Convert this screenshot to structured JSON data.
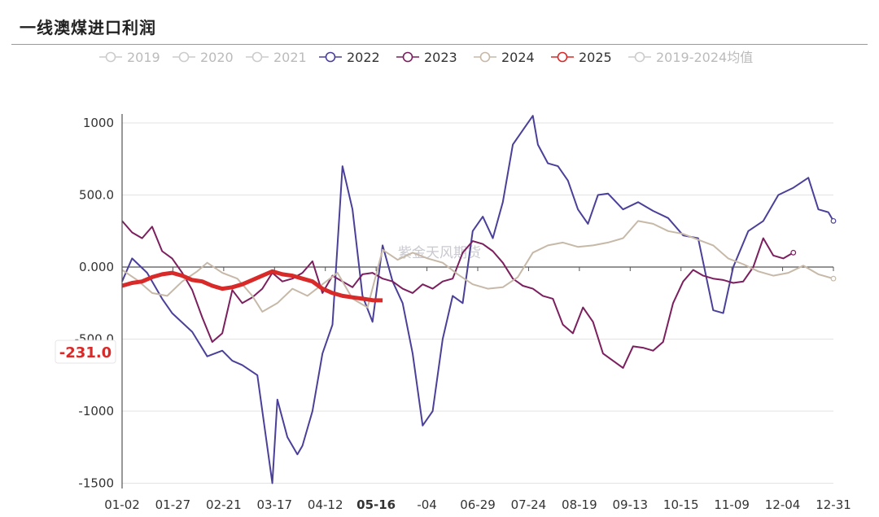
{
  "page": {
    "title": "一线澳煤进口利润"
  },
  "watermark": "紫金天风期货",
  "tooltip": {
    "value": "-231.0",
    "color": "#d92a2a"
  },
  "highlight_x_label": "05-16",
  "chart_data": {
    "type": "line",
    "title": "一线澳煤进口利润",
    "x_ticks": [
      "01-02",
      "01-27",
      "02-21",
      "03-17",
      "04-12",
      "05-16",
      "-04",
      "06-29",
      "07-24",
      "08-19",
      "09-13",
      "10-15",
      "11-09",
      "12-04",
      "12-31"
    ],
    "y_ticks": [
      "1000",
      "500.0",
      "0.000",
      "-500.0",
      "-1000",
      "-1500"
    ],
    "y_tick_values": [
      1000,
      500,
      0,
      -500,
      -1000,
      -1500
    ],
    "ylim": [
      -1500,
      1000
    ],
    "grid": true,
    "legend_position": "top",
    "series": [
      {
        "name": "2019",
        "color": "#cccccc",
        "visible": false,
        "values": []
      },
      {
        "name": "2020",
        "color": "#cccccc",
        "visible": false,
        "values": []
      },
      {
        "name": "2021",
        "color": "#cccccc",
        "visible": false,
        "values": []
      },
      {
        "name": "2022",
        "color": "#4a4099",
        "visible": true,
        "values": [
          [
            0,
            -100
          ],
          [
            0.02,
            60
          ],
          [
            0.05,
            -40
          ],
          [
            0.08,
            -220
          ],
          [
            0.1,
            -320
          ],
          [
            0.14,
            -450
          ],
          [
            0.17,
            -620
          ],
          [
            0.2,
            -580
          ],
          [
            0.22,
            -650
          ],
          [
            0.24,
            -680
          ],
          [
            0.27,
            -750
          ],
          [
            0.3,
            -1500
          ],
          [
            0.31,
            -920
          ],
          [
            0.33,
            -1180
          ],
          [
            0.35,
            -1300
          ],
          [
            0.36,
            -1240
          ],
          [
            0.38,
            -1000
          ],
          [
            0.4,
            -600
          ],
          [
            0.42,
            -400
          ],
          [
            0.44,
            700
          ],
          [
            0.46,
            400
          ],
          [
            0.48,
            -200
          ],
          [
            0.5,
            -380
          ],
          [
            0.52,
            150
          ],
          [
            0.54,
            -100
          ],
          [
            0.56,
            -250
          ],
          [
            0.58,
            -600
          ],
          [
            0.6,
            -1100
          ],
          [
            0.62,
            -1000
          ],
          [
            0.64,
            -500
          ],
          [
            0.66,
            -200
          ],
          [
            0.68,
            -250
          ],
          [
            0.7,
            250
          ],
          [
            0.72,
            350
          ],
          [
            0.74,
            200
          ],
          [
            0.76,
            450
          ],
          [
            0.78,
            850
          ],
          [
            0.8,
            950
          ],
          [
            0.82,
            1050
          ],
          [
            0.83,
            850
          ],
          [
            0.85,
            720
          ],
          [
            0.87,
            700
          ],
          [
            0.89,
            600
          ],
          [
            0.91,
            400
          ],
          [
            0.93,
            300
          ],
          [
            0.95,
            500
          ],
          [
            0.97,
            510
          ],
          [
            1.0,
            400
          ],
          [
            1.03,
            450
          ],
          [
            1.06,
            390
          ],
          [
            1.09,
            340
          ],
          [
            1.12,
            220
          ],
          [
            1.15,
            200
          ],
          [
            1.18,
            -300
          ],
          [
            1.2,
            -320
          ],
          [
            1.22,
            0
          ],
          [
            1.25,
            250
          ],
          [
            1.28,
            320
          ],
          [
            1.31,
            500
          ],
          [
            1.34,
            550
          ],
          [
            1.37,
            620
          ],
          [
            1.39,
            400
          ],
          [
            1.41,
            380
          ],
          [
            1.42,
            320
          ]
        ]
      },
      {
        "name": "2023",
        "color": "#7b1f5e",
        "visible": true,
        "values": [
          [
            0,
            320
          ],
          [
            0.02,
            240
          ],
          [
            0.04,
            200
          ],
          [
            0.06,
            280
          ],
          [
            0.08,
            110
          ],
          [
            0.1,
            60
          ],
          [
            0.12,
            -40
          ],
          [
            0.14,
            -160
          ],
          [
            0.16,
            -350
          ],
          [
            0.18,
            -520
          ],
          [
            0.2,
            -460
          ],
          [
            0.22,
            -160
          ],
          [
            0.24,
            -250
          ],
          [
            0.26,
            -210
          ],
          [
            0.28,
            -150
          ],
          [
            0.3,
            -40
          ],
          [
            0.32,
            -100
          ],
          [
            0.34,
            -80
          ],
          [
            0.36,
            -40
          ],
          [
            0.38,
            40
          ],
          [
            0.4,
            -180
          ],
          [
            0.42,
            -60
          ],
          [
            0.44,
            -100
          ],
          [
            0.46,
            -140
          ],
          [
            0.48,
            -50
          ],
          [
            0.5,
            -40
          ],
          [
            0.52,
            -80
          ],
          [
            0.54,
            -100
          ],
          [
            0.56,
            -150
          ],
          [
            0.58,
            -180
          ],
          [
            0.6,
            -120
          ],
          [
            0.62,
            -150
          ],
          [
            0.64,
            -100
          ],
          [
            0.66,
            -80
          ],
          [
            0.68,
            100
          ],
          [
            0.7,
            180
          ],
          [
            0.72,
            160
          ],
          [
            0.74,
            110
          ],
          [
            0.76,
            30
          ],
          [
            0.78,
            -80
          ],
          [
            0.8,
            -130
          ],
          [
            0.82,
            -150
          ],
          [
            0.84,
            -200
          ],
          [
            0.86,
            -220
          ],
          [
            0.88,
            -400
          ],
          [
            0.9,
            -460
          ],
          [
            0.92,
            -280
          ],
          [
            0.94,
            -380
          ],
          [
            0.96,
            -600
          ],
          [
            0.98,
            -650
          ],
          [
            1.0,
            -700
          ],
          [
            1.02,
            -550
          ],
          [
            1.04,
            -560
          ],
          [
            1.06,
            -580
          ],
          [
            1.08,
            -520
          ],
          [
            1.1,
            -250
          ],
          [
            1.12,
            -100
          ],
          [
            1.14,
            -20
          ],
          [
            1.16,
            -60
          ],
          [
            1.18,
            -80
          ],
          [
            1.2,
            -90
          ],
          [
            1.22,
            -110
          ],
          [
            1.24,
            -100
          ],
          [
            1.26,
            0
          ],
          [
            1.28,
            200
          ],
          [
            1.3,
            80
          ],
          [
            1.32,
            60
          ],
          [
            1.34,
            100
          ]
        ]
      },
      {
        "name": "2024",
        "color": "#c7b9a8",
        "visible": true,
        "values": [
          [
            0,
            -20
          ],
          [
            0.03,
            -90
          ],
          [
            0.06,
            -180
          ],
          [
            0.09,
            -200
          ],
          [
            0.12,
            -100
          ],
          [
            0.15,
            -30
          ],
          [
            0.17,
            30
          ],
          [
            0.2,
            -40
          ],
          [
            0.23,
            -80
          ],
          [
            0.26,
            -200
          ],
          [
            0.28,
            -310
          ],
          [
            0.31,
            -250
          ],
          [
            0.34,
            -150
          ],
          [
            0.37,
            -200
          ],
          [
            0.4,
            -120
          ],
          [
            0.43,
            -40
          ],
          [
            0.46,
            -220
          ],
          [
            0.49,
            -280
          ],
          [
            0.52,
            120
          ],
          [
            0.55,
            50
          ],
          [
            0.58,
            100
          ],
          [
            0.61,
            60
          ],
          [
            0.64,
            30
          ],
          [
            0.67,
            -50
          ],
          [
            0.7,
            -120
          ],
          [
            0.73,
            -150
          ],
          [
            0.76,
            -140
          ],
          [
            0.79,
            -70
          ],
          [
            0.82,
            100
          ],
          [
            0.85,
            150
          ],
          [
            0.88,
            170
          ],
          [
            0.91,
            140
          ],
          [
            0.94,
            150
          ],
          [
            0.97,
            170
          ],
          [
            1.0,
            200
          ],
          [
            1.03,
            320
          ],
          [
            1.06,
            300
          ],
          [
            1.09,
            250
          ],
          [
            1.12,
            230
          ],
          [
            1.15,
            190
          ],
          [
            1.18,
            150
          ],
          [
            1.21,
            60
          ],
          [
            1.24,
            20
          ],
          [
            1.27,
            -30
          ],
          [
            1.3,
            -60
          ],
          [
            1.33,
            -40
          ],
          [
            1.36,
            10
          ],
          [
            1.39,
            -50
          ],
          [
            1.42,
            -80
          ]
        ]
      },
      {
        "name": "2025",
        "color": "#d92a2a",
        "visible": true,
        "values": [
          [
            0,
            -130
          ],
          [
            0.02,
            -110
          ],
          [
            0.04,
            -100
          ],
          [
            0.06,
            -70
          ],
          [
            0.08,
            -50
          ],
          [
            0.1,
            -40
          ],
          [
            0.12,
            -60
          ],
          [
            0.14,
            -90
          ],
          [
            0.16,
            -100
          ],
          [
            0.18,
            -130
          ],
          [
            0.2,
            -150
          ],
          [
            0.22,
            -140
          ],
          [
            0.24,
            -120
          ],
          [
            0.26,
            -90
          ],
          [
            0.28,
            -60
          ],
          [
            0.3,
            -30
          ],
          [
            0.32,
            -50
          ],
          [
            0.34,
            -60
          ],
          [
            0.36,
            -80
          ],
          [
            0.38,
            -100
          ],
          [
            0.4,
            -150
          ],
          [
            0.42,
            -180
          ],
          [
            0.44,
            -200
          ],
          [
            0.46,
            -210
          ],
          [
            0.48,
            -220
          ],
          [
            0.5,
            -230
          ],
          [
            0.52,
            -231
          ]
        ]
      },
      {
        "name": "2019-2024均值",
        "color": "#cccccc",
        "visible": false,
        "values": []
      }
    ]
  }
}
